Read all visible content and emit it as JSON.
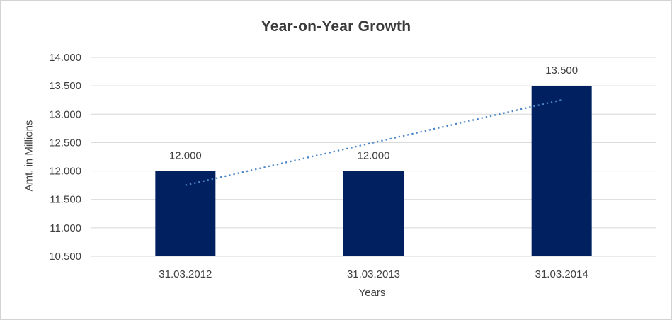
{
  "chart_data": {
    "type": "bar",
    "title": "Year-on-Year Growth",
    "xlabel": "Years",
    "ylabel": "Amt. in Millions",
    "categories": [
      "31.03.2012",
      "31.03.2013",
      "31.03.2014"
    ],
    "values": [
      12.0,
      12.0,
      13.5
    ],
    "data_labels": [
      "12.000",
      "12.000",
      "13.500"
    ],
    "ylim": [
      10.5,
      14.0
    ],
    "ytick_step": 0.5,
    "ytick_labels": [
      "10.500",
      "11.000",
      "11.500",
      "12.000",
      "12.500",
      "13.000",
      "13.500",
      "14.000"
    ],
    "grid": true,
    "legend": "none",
    "trendline": {
      "type": "linear",
      "style": "dotted",
      "start_value": 11.75,
      "end_value": 13.25
    },
    "colors": {
      "bar": "#002060",
      "trendline": "#4a86c8",
      "gridline": "#d6d6d6",
      "text": "#404040",
      "title": "#3b3b3b",
      "border": "#d3d3d3",
      "background": "#ffffff"
    }
  }
}
